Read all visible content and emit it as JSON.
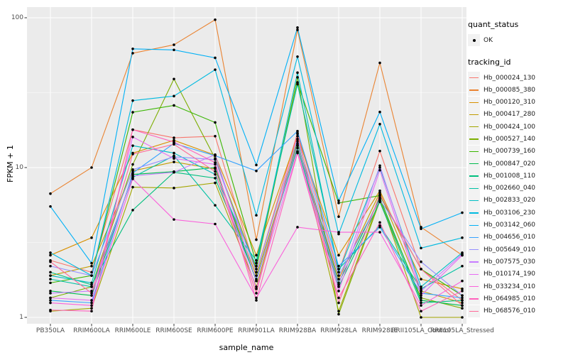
{
  "axes": {
    "x_title": "sample_name",
    "y_title": "FPKM + 1",
    "y_ticks": [
      {
        "label": "100",
        "value": 100
      },
      {
        "label": "10",
        "value": 10
      },
      {
        "label": "1",
        "value": 1
      }
    ]
  },
  "legend": {
    "quant_status_title": "quant_status",
    "quant_status_items": [
      {
        "label": "OK",
        "shape": "point"
      }
    ],
    "tracking_title": "tracking_id"
  },
  "style": {
    "panel_bg": "#EBEBEB",
    "grid_major": "#FFFFFF",
    "grid_minor": "#F7F7F7",
    "tick_color": "#333333",
    "point_color": "#000000",
    "key_bg": "#F2F2F2"
  },
  "chart_data": {
    "type": "line",
    "title": "",
    "xlabel": "sample_name",
    "ylabel": "FPKM + 1",
    "yscale": "log10",
    "ylim": [
      1,
      100
    ],
    "grid": true,
    "legend_position": "right",
    "point_marker": "black dot (quant_status OK)",
    "categories": [
      "PB350LA",
      "RRIM600LA",
      "RRIM600LE",
      "RRIM600SE",
      "RRIM600PE",
      "RRIM901LA",
      "RRIM928BA",
      "RRIM928LA",
      "RRIM928LE",
      "RRII105LA_Control",
      "RRII105LA_Stressed"
    ],
    "series": [
      {
        "name": "Hb_000024_130",
        "color": "#F8766D",
        "values": [
          2.4,
          2.0,
          17.9,
          15.8,
          16.2,
          2.0,
          17.0,
          2.0,
          12.9,
          2.1,
          1.3
        ]
      },
      {
        "name": "Hb_000085_380",
        "color": "#EA8331",
        "values": [
          6.7,
          10.0,
          58,
          66,
          97,
          3.3,
          83,
          4.7,
          50,
          4.0,
          2.6
        ]
      },
      {
        "name": "Hb_000120_310",
        "color": "#D89000",
        "values": [
          2.6,
          3.4,
          12.5,
          15.2,
          12.1,
          2.6,
          16.2,
          2.6,
          7.0,
          1.8,
          1.55
        ]
      },
      {
        "name": "Hb_000417_280",
        "color": "#C09B00",
        "values": [
          1.9,
          2.2,
          9.5,
          10.9,
          9.8,
          1.9,
          14.0,
          1.8,
          6.8,
          1.5,
          1.25
        ]
      },
      {
        "name": "Hb_000424_100",
        "color": "#A3A500",
        "values": [
          1.1,
          1.15,
          7.4,
          7.3,
          7.9,
          1.6,
          15.0,
          1.1,
          6.2,
          1.0,
          1.0
        ]
      },
      {
        "name": "Hb_000527_140",
        "color": "#7CAE00",
        "values": [
          1.35,
          1.6,
          10.5,
          39,
          11.5,
          2.1,
          40,
          1.05,
          6.0,
          1.35,
          1.15
        ]
      },
      {
        "name": "Hb_000739_160",
        "color": "#39B600",
        "values": [
          1.7,
          1.9,
          23.4,
          26,
          20,
          2.3,
          37,
          5.8,
          6.5,
          2.1,
          1.4
        ]
      },
      {
        "name": "Hb_000847_020",
        "color": "#00BB4E",
        "values": [
          1.5,
          1.4,
          9.0,
          9.4,
          10.0,
          1.75,
          14.5,
          1.7,
          6.3,
          1.3,
          1.2
        ]
      },
      {
        "name": "Hb_001008_110",
        "color": "#00BF7D",
        "values": [
          2.0,
          1.65,
          5.2,
          9.3,
          8.5,
          1.8,
          13.5,
          1.6,
          5.9,
          1.25,
          1.3
        ]
      },
      {
        "name": "Hb_002660_040",
        "color": "#00C1A3",
        "values": [
          1.8,
          1.6,
          8.6,
          12.0,
          5.6,
          2.4,
          36,
          2.1,
          4.1,
          1.55,
          2.2
        ]
      },
      {
        "name": "Hb_002833_020",
        "color": "#00BFC4",
        "values": [
          1.9,
          1.7,
          14.0,
          12.5,
          9.0,
          2.2,
          43,
          2.0,
          10.0,
          1.6,
          2.7
        ]
      },
      {
        "name": "Hb_003106_230",
        "color": "#00BAE0",
        "values": [
          2.7,
          1.9,
          28,
          30,
          45,
          4.8,
          55,
          3.6,
          19.5,
          2.9,
          3.4
        ]
      },
      {
        "name": "Hb_003142_060",
        "color": "#00B0F6",
        "values": [
          5.5,
          2.3,
          62,
          61,
          54,
          10.4,
          86,
          6.0,
          23.5,
          3.9,
          5.0
        ]
      },
      {
        "name": "Hb_004656_010",
        "color": "#35A2FF",
        "values": [
          1.3,
          1.25,
          9.2,
          14.5,
          12.0,
          9.5,
          17.5,
          2.2,
          4.0,
          1.45,
          1.35
        ]
      },
      {
        "name": "Hb_005649_010",
        "color": "#9590FF",
        "values": [
          2.2,
          1.9,
          9.7,
          11.8,
          11.3,
          2.0,
          15.5,
          1.9,
          6.1,
          2.35,
          1.4
        ]
      },
      {
        "name": "Hb_007575_030",
        "color": "#C77CFF",
        "values": [
          1.45,
          1.5,
          8.8,
          9.3,
          12.2,
          1.75,
          14.2,
          1.65,
          10.3,
          1.5,
          2.65
        ]
      },
      {
        "name": "Hb_010174_190",
        "color": "#E76BF3",
        "values": [
          1.35,
          1.3,
          16.0,
          11.5,
          10.5,
          1.55,
          12.8,
          1.5,
          9.6,
          1.4,
          2.6
        ]
      },
      {
        "name": "Hb_033234_010",
        "color": "#FA62DB",
        "values": [
          1.25,
          1.2,
          8.4,
          4.5,
          4.2,
          1.35,
          4.0,
          3.7,
          3.7,
          1.2,
          1.75
        ]
      },
      {
        "name": "Hb_064985_010",
        "color": "#FF62BC",
        "values": [
          1.12,
          1.1,
          17.9,
          14.8,
          10.8,
          1.3,
          12.5,
          1.35,
          4.3,
          1.1,
          1.5
        ]
      },
      {
        "name": "Hb_068576_010",
        "color": "#FF6A98",
        "values": [
          2.35,
          1.45,
          12.3,
          14.3,
          9.4,
          1.45,
          16.8,
          1.25,
          6.6,
          2.1,
          1.2
        ]
      }
    ]
  }
}
